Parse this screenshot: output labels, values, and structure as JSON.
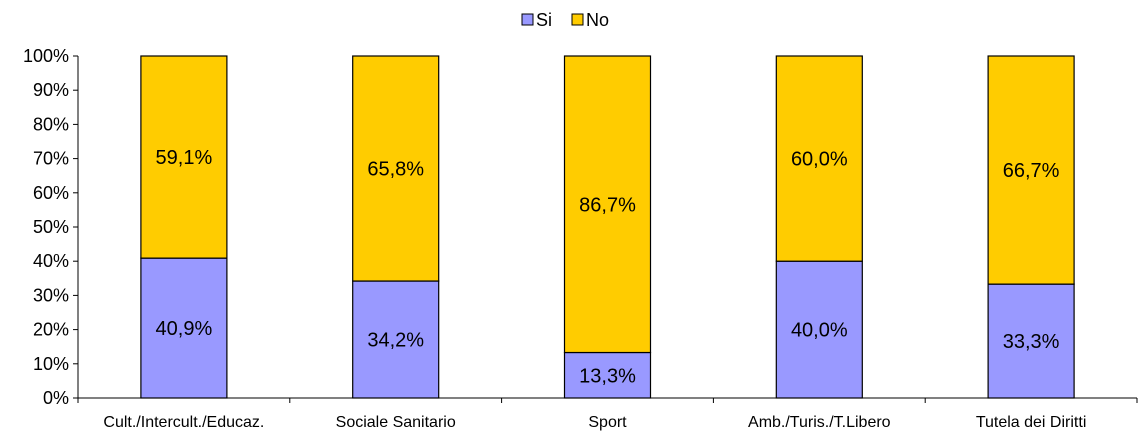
{
  "chart_data": {
    "type": "bar",
    "stacked": true,
    "percent": true,
    "categories": [
      "Cult./Intercult./Educaz.",
      "Sociale Sanitario",
      "Sport",
      "Amb./Turis./T.Libero",
      "Tutela dei Diritti"
    ],
    "series": [
      {
        "name": "Si",
        "color": "#9999ff",
        "values": [
          40.9,
          34.2,
          13.3,
          40.0,
          33.3
        ],
        "labels": [
          "40,9%",
          "34,2%",
          "13,3%",
          "40,0%",
          "33,3%"
        ]
      },
      {
        "name": "No",
        "color": "#ffcc00",
        "values": [
          59.1,
          65.8,
          86.7,
          60.0,
          66.7
        ],
        "labels": [
          "59,1%",
          "65,8%",
          "86,7%",
          "60,0%",
          "66,7%"
        ]
      }
    ],
    "y_ticks": [
      "0%",
      "10%",
      "20%",
      "30%",
      "40%",
      "50%",
      "60%",
      "70%",
      "80%",
      "90%",
      "100%"
    ],
    "ylim": [
      0,
      100
    ],
    "grid": false,
    "legend_position": "top-center",
    "title": "",
    "xlabel": "",
    "ylabel": ""
  }
}
